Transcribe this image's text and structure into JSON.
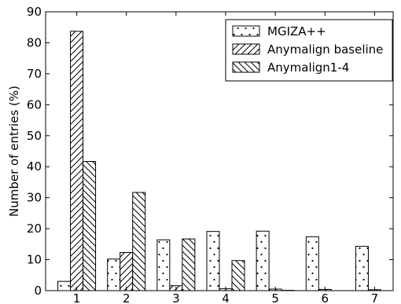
{
  "chart_data": {
    "type": "bar",
    "categories": [
      "1",
      "2",
      "3",
      "4",
      "5",
      "6",
      "7"
    ],
    "series": [
      {
        "name": "MGIZA++",
        "pattern": "dots",
        "values": [
          3.0,
          10.2,
          16.4,
          19.1,
          19.2,
          17.4,
          14.3
        ]
      },
      {
        "name": "Anymalign baseline",
        "pattern": "diagonal-forward",
        "values": [
          83.7,
          12.3,
          1.6,
          0.6,
          0.5,
          0.4,
          0.3
        ]
      },
      {
        "name": "Anymalign1-4",
        "pattern": "diagonal-backward",
        "values": [
          41.7,
          31.7,
          16.7,
          9.7,
          0.1,
          0.0,
          0.0
        ]
      }
    ],
    "xlabel": "",
    "ylabel": "Number of entries (%)",
    "ylim": [
      0,
      90
    ],
    "yticks": [
      0,
      10,
      20,
      30,
      40,
      50,
      60,
      70,
      80,
      90
    ],
    "grid": false,
    "legend_position": "top-right"
  }
}
